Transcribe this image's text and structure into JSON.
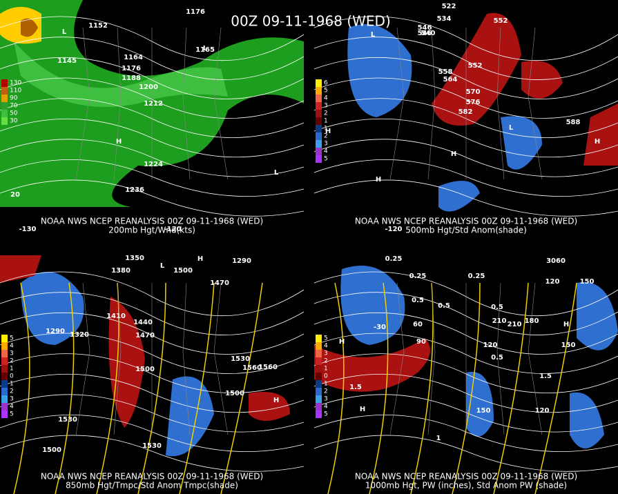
{
  "title": "00Z 09-11-1968 (WED)",
  "panels": [
    {
      "source": "NOAA NWS NCEP REANALYSIS 00Z 09-11-1968 (WED)",
      "caption": "200mb Hgt/Wnd(kts)",
      "scale": [
        "130",
        "110",
        "90",
        "70",
        "50",
        "30"
      ],
      "labels": [
        "1176",
        "1152",
        "L",
        "1145",
        "L",
        "1165",
        "1164",
        "1176",
        "1188",
        "1200",
        "1212",
        "1224",
        "1236",
        "L",
        "H",
        "20",
        "-130",
        "-120"
      ]
    },
    {
      "source": "NOAA NWS NCEP REANALYSIS 00Z 09-11-1968 (WED)",
      "caption": "500mb Hgt/Std Anom(shade)",
      "scale": [
        "6",
        "5",
        "4",
        "3",
        "2",
        "1",
        "1",
        "2",
        "3",
        "4",
        "5"
      ],
      "labels": [
        "522",
        "534",
        "546",
        "540",
        "558",
        "552",
        "546",
        "L",
        "552",
        "564",
        "570",
        "576",
        "582",
        "L",
        "588",
        "H",
        "H",
        "H",
        "H",
        "-120"
      ]
    },
    {
      "source": "NOAA NWS NCEP REANALYSIS 00Z 09-11-1968 (WED)",
      "caption": "850mb Hgt/Tmpc/Std Anom Tmpc(shade)",
      "scale": [
        "5",
        "4",
        "3",
        "2",
        "1",
        "0",
        "1",
        "2",
        "3",
        "4",
        "5"
      ],
      "labels": [
        "1350",
        "1380",
        "1500",
        "1290",
        "1470",
        "1410",
        "1440",
        "1470",
        "1290",
        "1320",
        "1500",
        "H",
        "1530",
        "1560",
        "1560",
        "1500",
        "1530",
        "1500",
        "1530",
        "H",
        "L"
      ]
    },
    {
      "source": "NOAA NWS NCEP REANALYSIS 00Z 09-11-1968 (WED)",
      "caption": "1000mb Hgt, PW (inches), Std Anom PW (shade)",
      "scale": [
        "5",
        "4",
        "3",
        "2",
        "1",
        "0",
        "1",
        "2",
        "3",
        "4",
        "5"
      ],
      "labels": [
        "0.25",
        "3060",
        "0.25",
        "0.25",
        "120",
        "150",
        "0.5",
        "0.5",
        "0.5",
        "60",
        "-30",
        "90",
        "120",
        "210",
        "180",
        "150",
        "0.5",
        "1.5",
        "1.5",
        "150",
        "120",
        "H",
        "H",
        "H",
        "1",
        "210"
      ]
    }
  ]
}
